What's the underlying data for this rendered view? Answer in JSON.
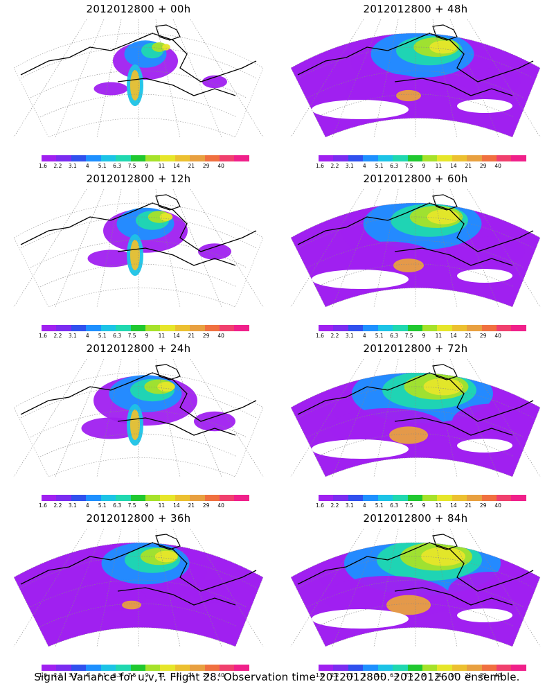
{
  "panels": [
    {
      "title": "2012012800  + 00h",
      "intensity": 0.05
    },
    {
      "title": "2012012800  + 48h",
      "intensity": 0.45
    },
    {
      "title": "2012012800  + 12h",
      "intensity": 0.15
    },
    {
      "title": "2012012800  + 60h",
      "intensity": 0.55
    },
    {
      "title": "2012012800  + 24h",
      "intensity": 0.25
    },
    {
      "title": "2012012800  + 72h",
      "intensity": 0.7
    },
    {
      "title": "2012012800  + 36h",
      "intensity": 0.35
    },
    {
      "title": "2012012800  + 84h",
      "intensity": 0.8
    }
  ],
  "colorbar": {
    "labels": [
      "1.6",
      "2.2",
      "3.1",
      "4",
      "5.1",
      "6.3",
      "7.5",
      "9",
      "11",
      "14",
      "21",
      "29",
      "40"
    ],
    "colors": [
      "#a020f0",
      "#7b2cf0",
      "#3050ee",
      "#1e90ff",
      "#1cc3e6",
      "#20d8b0",
      "#20c830",
      "#a6e22a",
      "#e6e62a",
      "#ecc030",
      "#e8a040",
      "#f07040",
      "#f0406e",
      "#f0208a"
    ]
  },
  "caption": "Signal Variance for u,v,T. Flight 28. Observation time 2012012800. 2012012600 ensemble."
}
